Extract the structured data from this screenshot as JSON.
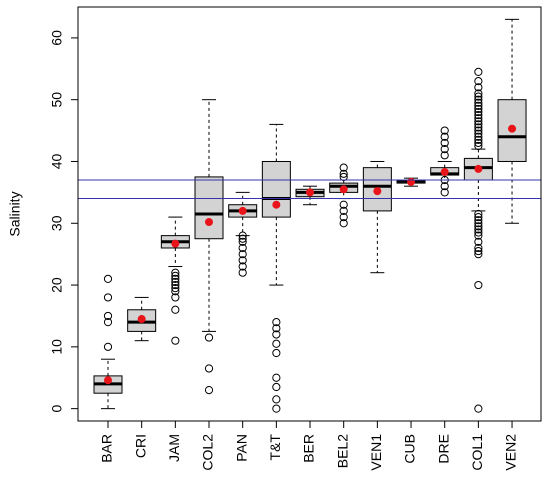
{
  "chart_data": {
    "type": "boxplot",
    "ylabel": "Salinity",
    "xlabel": "",
    "ylim": [
      -2,
      65
    ],
    "yticks": [
      0,
      10,
      20,
      30,
      40,
      50,
      60
    ],
    "grid": false,
    "legend": "none",
    "reference_lines": [
      {
        "y": 37,
        "color": "#3333aa"
      },
      {
        "y": 34,
        "color": "#3333aa"
      }
    ],
    "colors": {
      "box_fill": "#d3d3d3",
      "mean_point": "#e8141a",
      "reference_line": "#3333aa",
      "median": "#000000"
    },
    "categories": [
      "BAR",
      "CRI",
      "JAM",
      "COL2",
      "PAN",
      "T&T",
      "BER",
      "BEL2",
      "VEN1",
      "CUB",
      "DRE",
      "COL1",
      "VEN2"
    ],
    "boxes": [
      {
        "label": "BAR",
        "whisker_low": 0,
        "q1": 2.5,
        "median": 4,
        "q3": 5.3,
        "whisker_high": 8,
        "mean": 4.6,
        "outliers": [
          10,
          14,
          15,
          18,
          21
        ]
      },
      {
        "label": "CRI",
        "whisker_low": 11,
        "q1": 12.5,
        "median": 14,
        "q3": 16,
        "whisker_high": 18,
        "mean": 14.5,
        "outliers": []
      },
      {
        "label": "JAM",
        "whisker_low": 23,
        "q1": 26,
        "median": 27,
        "q3": 28,
        "whisker_high": 31,
        "mean": 26.7,
        "outliers": [
          11,
          16,
          18,
          19,
          19.5,
          20,
          20.5,
          21,
          21.5,
          22
        ]
      },
      {
        "label": "COL2",
        "whisker_low": 12.5,
        "q1": 27.5,
        "median": 31.5,
        "q3": 37.5,
        "whisker_high": 50,
        "mean": 30.2,
        "outliers": [
          3,
          6.5,
          11.5
        ]
      },
      {
        "label": "PAN",
        "whisker_low": 28,
        "q1": 31,
        "median": 32,
        "q3": 33,
        "whisker_high": 35,
        "mean": 32,
        "outliers": [
          22,
          23,
          24,
          25,
          26,
          27,
          27.5,
          28
        ]
      },
      {
        "label": "T&T",
        "whisker_low": 20,
        "q1": 31,
        "median": 34,
        "q3": 40,
        "whisker_high": 46,
        "mean": 33,
        "outliers": [
          0,
          1.5,
          3.5,
          5,
          9,
          10.5,
          12,
          13,
          14
        ]
      },
      {
        "label": "BER",
        "whisker_low": 33,
        "q1": 34.3,
        "median": 35,
        "q3": 35.5,
        "whisker_high": 36,
        "mean": 35,
        "outliers": []
      },
      {
        "label": "BEL2",
        "whisker_low": 34,
        "q1": 35,
        "median": 36,
        "q3": 36.5,
        "whisker_high": 37,
        "mean": 35.5,
        "outliers": [
          30,
          31,
          32,
          33,
          37.5,
          38,
          39
        ]
      },
      {
        "label": "VEN1",
        "whisker_low": 22,
        "q1": 32,
        "median": 36,
        "q3": 39,
        "whisker_high": 40,
        "mean": 35.2,
        "outliers": []
      },
      {
        "label": "CUB",
        "whisker_low": 36,
        "q1": 36.5,
        "median": 36.8,
        "q3": 37,
        "whisker_high": 37.3,
        "mean": 36.7,
        "outliers": []
      },
      {
        "label": "DRE",
        "whisker_low": 37,
        "q1": 37.8,
        "median": 38,
        "q3": 39,
        "whisker_high": 40,
        "mean": 38.3,
        "outliers": [
          35,
          36,
          37,
          41,
          42,
          43,
          44,
          45
        ]
      },
      {
        "label": "COL1",
        "whisker_low": 32,
        "q1": 37,
        "median": 39,
        "q3": 40.5,
        "whisker_high": 42,
        "mean": 38.8,
        "outliers": [
          0,
          20,
          25,
          25.5,
          26,
          27,
          28,
          28.5,
          29,
          29.5,
          30,
          30.5,
          31,
          31.5,
          42.5,
          43,
          43.5,
          44,
          44.5,
          45,
          45.5,
          46,
          46.5,
          47,
          47.5,
          48,
          48.5,
          49,
          49.5,
          50,
          50.5,
          51,
          52,
          53,
          54.5
        ]
      },
      {
        "label": "VEN2",
        "whisker_low": 30,
        "q1": 40,
        "median": 44,
        "q3": 50,
        "whisker_high": 63,
        "mean": 45.3,
        "outliers": []
      }
    ]
  }
}
